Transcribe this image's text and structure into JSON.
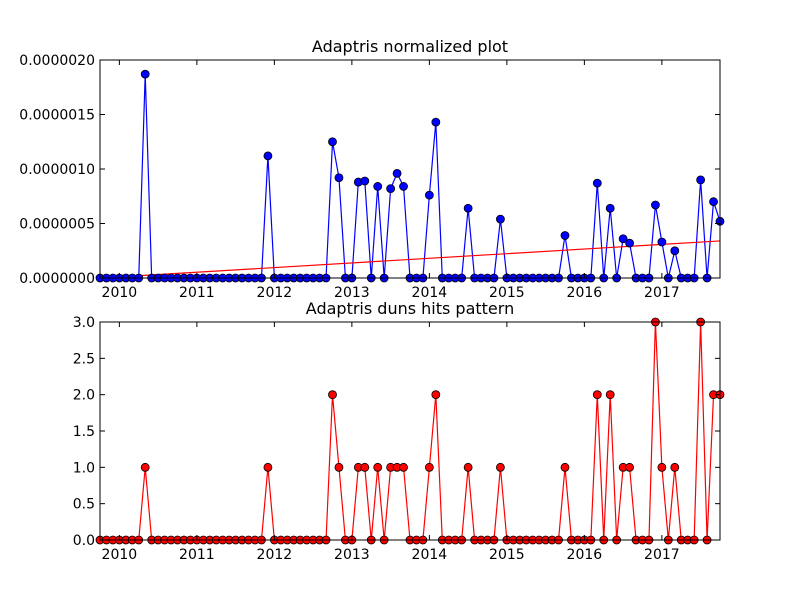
{
  "chart_data": [
    {
      "type": "line",
      "title": "Adaptris normalized plot",
      "xlabel": "",
      "ylabel": "",
      "xlim": [
        2009.75,
        2017.75
      ],
      "ylim": [
        0,
        2e-06
      ],
      "x_ticks": [
        2010,
        2011,
        2012,
        2013,
        2014,
        2015,
        2016,
        2017
      ],
      "x_tick_labels": [
        "2010",
        "2011",
        "2012",
        "2013",
        "2014",
        "2015",
        "2016",
        "2017"
      ],
      "y_ticks": [
        0,
        5e-07,
        1e-06,
        1.5e-06,
        2e-06
      ],
      "y_tick_labels": [
        "0.0000000",
        "0.0000005",
        "0.0000010",
        "0.0000015",
        "0.0000020"
      ],
      "grid": false,
      "colors": {
        "series": "#0000ff",
        "marker": "#0000ff",
        "trend": "#ff0000"
      },
      "x": [
        "2009-10",
        "2009-11",
        "2009-12",
        "2010-01",
        "2010-02",
        "2010-03",
        "2010-04",
        "2010-05",
        "2010-06",
        "2010-07",
        "2010-08",
        "2010-09",
        "2010-10",
        "2010-11",
        "2010-12",
        "2011-01",
        "2011-02",
        "2011-03",
        "2011-04",
        "2011-05",
        "2011-06",
        "2011-07",
        "2011-08",
        "2011-09",
        "2011-10",
        "2011-11",
        "2011-12",
        "2012-01",
        "2012-02",
        "2012-03",
        "2012-04",
        "2012-05",
        "2012-06",
        "2012-07",
        "2012-08",
        "2012-09",
        "2012-10",
        "2012-11",
        "2012-12",
        "2013-01",
        "2013-02",
        "2013-03",
        "2013-04",
        "2013-05",
        "2013-06",
        "2013-07",
        "2013-08",
        "2013-09",
        "2013-10",
        "2013-11",
        "2013-12",
        "2014-01",
        "2014-02",
        "2014-03",
        "2014-04",
        "2014-05",
        "2014-06",
        "2014-07",
        "2014-08",
        "2014-09",
        "2014-10",
        "2014-11",
        "2014-12",
        "2015-01",
        "2015-02",
        "2015-03",
        "2015-04",
        "2015-05",
        "2015-06",
        "2015-07",
        "2015-08",
        "2015-09",
        "2015-10",
        "2015-11",
        "2015-12",
        "2016-01",
        "2016-02",
        "2016-03",
        "2016-04",
        "2016-05",
        "2016-06",
        "2016-07",
        "2016-08",
        "2016-09",
        "2016-10",
        "2016-11",
        "2016-12",
        "2017-01",
        "2017-02",
        "2017-03",
        "2017-04",
        "2017-05",
        "2017-06",
        "2017-07",
        "2017-08",
        "2017-09",
        "2017-10"
      ],
      "series": [
        {
          "values": [
            0,
            0,
            0,
            0,
            0,
            0,
            0,
            1.87e-06,
            0,
            0,
            0,
            0,
            0,
            0,
            0,
            0,
            0,
            0,
            0,
            0,
            0,
            0,
            0,
            0,
            0,
            0,
            1.12e-06,
            0,
            0,
            0,
            0,
            0,
            0,
            0,
            0,
            0,
            1.25e-06,
            9.2e-07,
            0,
            0,
            8.8e-07,
            8.9e-07,
            0,
            8.4e-07,
            0,
            8.2e-07,
            9.6e-07,
            8.4e-07,
            0,
            0,
            0,
            7.6e-07,
            1.43e-06,
            0,
            0,
            0,
            0,
            6.4e-07,
            0,
            0,
            0,
            0,
            5.4e-07,
            0,
            0,
            0,
            0,
            0,
            0,
            0,
            0,
            0,
            3.9e-07,
            0,
            0,
            0,
            0,
            8.7e-07,
            0,
            6.4e-07,
            0,
            3.6e-07,
            3.2e-07,
            0,
            0,
            0,
            6.7e-07,
            3.3e-07,
            0,
            2.5e-07,
            0,
            0,
            0,
            9e-07,
            0,
            7e-07,
            5.2e-07
          ]
        }
      ],
      "trend_line": {
        "x": [
          "2009-10",
          "2017-10"
        ],
        "y": [
          0,
          3.4e-07
        ]
      }
    },
    {
      "type": "line",
      "title": "Adaptris duns hits pattern",
      "xlabel": "",
      "ylabel": "",
      "xlim": [
        2009.75,
        2017.75
      ],
      "ylim": [
        0,
        3
      ],
      "x_ticks": [
        2010,
        2011,
        2012,
        2013,
        2014,
        2015,
        2016,
        2017
      ],
      "x_tick_labels": [
        "2010",
        "2011",
        "2012",
        "2013",
        "2014",
        "2015",
        "2016",
        "2017"
      ],
      "y_ticks": [
        0,
        0.5,
        1,
        1.5,
        2,
        2.5,
        3
      ],
      "y_tick_labels": [
        "0.0",
        "0.5",
        "1.0",
        "1.5",
        "2.0",
        "2.5",
        "3.0"
      ],
      "grid": false,
      "colors": {
        "series": "#ff0000",
        "marker": "#ff0000"
      },
      "x": [
        "2009-10",
        "2009-11",
        "2009-12",
        "2010-01",
        "2010-02",
        "2010-03",
        "2010-04",
        "2010-05",
        "2010-06",
        "2010-07",
        "2010-08",
        "2010-09",
        "2010-10",
        "2010-11",
        "2010-12",
        "2011-01",
        "2011-02",
        "2011-03",
        "2011-04",
        "2011-05",
        "2011-06",
        "2011-07",
        "2011-08",
        "2011-09",
        "2011-10",
        "2011-11",
        "2011-12",
        "2012-01",
        "2012-02",
        "2012-03",
        "2012-04",
        "2012-05",
        "2012-06",
        "2012-07",
        "2012-08",
        "2012-09",
        "2012-10",
        "2012-11",
        "2012-12",
        "2013-01",
        "2013-02",
        "2013-03",
        "2013-04",
        "2013-05",
        "2013-06",
        "2013-07",
        "2013-08",
        "2013-09",
        "2013-10",
        "2013-11",
        "2013-12",
        "2014-01",
        "2014-02",
        "2014-03",
        "2014-04",
        "2014-05",
        "2014-06",
        "2014-07",
        "2014-08",
        "2014-09",
        "2014-10",
        "2014-11",
        "2014-12",
        "2015-01",
        "2015-02",
        "2015-03",
        "2015-04",
        "2015-05",
        "2015-06",
        "2015-07",
        "2015-08",
        "2015-09",
        "2015-10",
        "2015-11",
        "2015-12",
        "2016-01",
        "2016-02",
        "2016-03",
        "2016-04",
        "2016-05",
        "2016-06",
        "2016-07",
        "2016-08",
        "2016-09",
        "2016-10",
        "2016-11",
        "2016-12",
        "2017-01",
        "2017-02",
        "2017-03",
        "2017-04",
        "2017-05",
        "2017-06",
        "2017-07",
        "2017-08",
        "2017-09",
        "2017-10"
      ],
      "series": [
        {
          "values": [
            0,
            0,
            0,
            0,
            0,
            0,
            0,
            1,
            0,
            0,
            0,
            0,
            0,
            0,
            0,
            0,
            0,
            0,
            0,
            0,
            0,
            0,
            0,
            0,
            0,
            0,
            1,
            0,
            0,
            0,
            0,
            0,
            0,
            0,
            0,
            0,
            2,
            1,
            0,
            0,
            1,
            1,
            0,
            1,
            0,
            1,
            1,
            1,
            0,
            0,
            0,
            1,
            2,
            0,
            0,
            0,
            0,
            1,
            0,
            0,
            0,
            0,
            1,
            0,
            0,
            0,
            0,
            0,
            0,
            0,
            0,
            0,
            1,
            0,
            0,
            0,
            0,
            2,
            0,
            2,
            0,
            1,
            1,
            0,
            0,
            0,
            3,
            1,
            0,
            1,
            0,
            0,
            0,
            3,
            0,
            2,
            2
          ]
        }
      ]
    }
  ]
}
